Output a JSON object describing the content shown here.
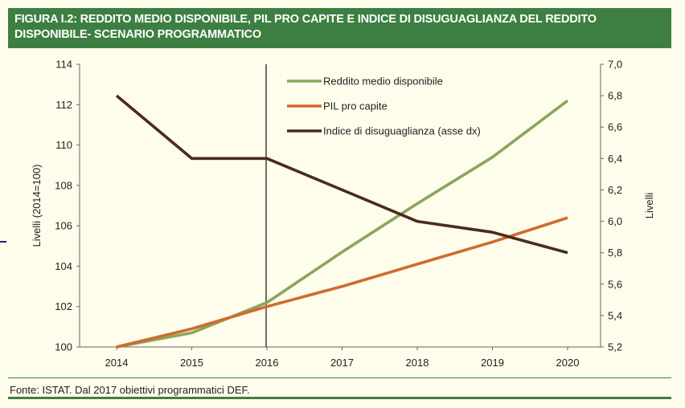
{
  "figure": {
    "title_line1": "FIGURA I.2: REDDITO MEDIO DISPONIBILE, PIL PRO CAPITE E INDICE DI DISUGUAGLIANZA DEL REDDITO",
    "title_line2": "DISPONIBILE- SCENARIO PROGRAMMATICO",
    "source": "Fonte: ISTAT. Dal 2017 obiettivi programmatici DEF."
  },
  "chart_data": {
    "type": "line",
    "x": [
      "2014",
      "2015",
      "2016",
      "2017",
      "2018",
      "2019",
      "2020"
    ],
    "ylabel_left": "Livelli  (2014=100)",
    "ylabel_right": "Livelli",
    "y_left_lim": [
      100,
      114
    ],
    "y_left_ticks": [
      "100",
      "102",
      "104",
      "106",
      "108",
      "110",
      "112",
      "114"
    ],
    "y_right_lim": [
      5.2,
      7.0
    ],
    "y_right_ticks": [
      "5,2",
      "5,4",
      "5,6",
      "5,8",
      "6,0",
      "6,2",
      "6,4",
      "6,6",
      "6,8",
      "7,0"
    ],
    "vertical_marker_x": "2016",
    "legend_position": "top-center",
    "grid": false,
    "series": [
      {
        "name": "Reddito medio disponibile",
        "axis": "left",
        "color": "#8aa65c",
        "values": [
          100,
          100.7,
          102.2,
          104.7,
          107.1,
          109.4,
          112.2
        ]
      },
      {
        "name": "PIL pro capite",
        "axis": "left",
        "color": "#cf6b2f",
        "values": [
          100,
          100.9,
          102.0,
          103.0,
          104.1,
          105.2,
          106.4
        ]
      },
      {
        "name": "Indice di disuguaglianza (asse dx)",
        "axis": "right",
        "color": "#4a2b1c",
        "values": [
          6.8,
          6.4,
          6.4,
          6.2,
          6.0,
          5.93,
          5.8
        ]
      }
    ]
  }
}
